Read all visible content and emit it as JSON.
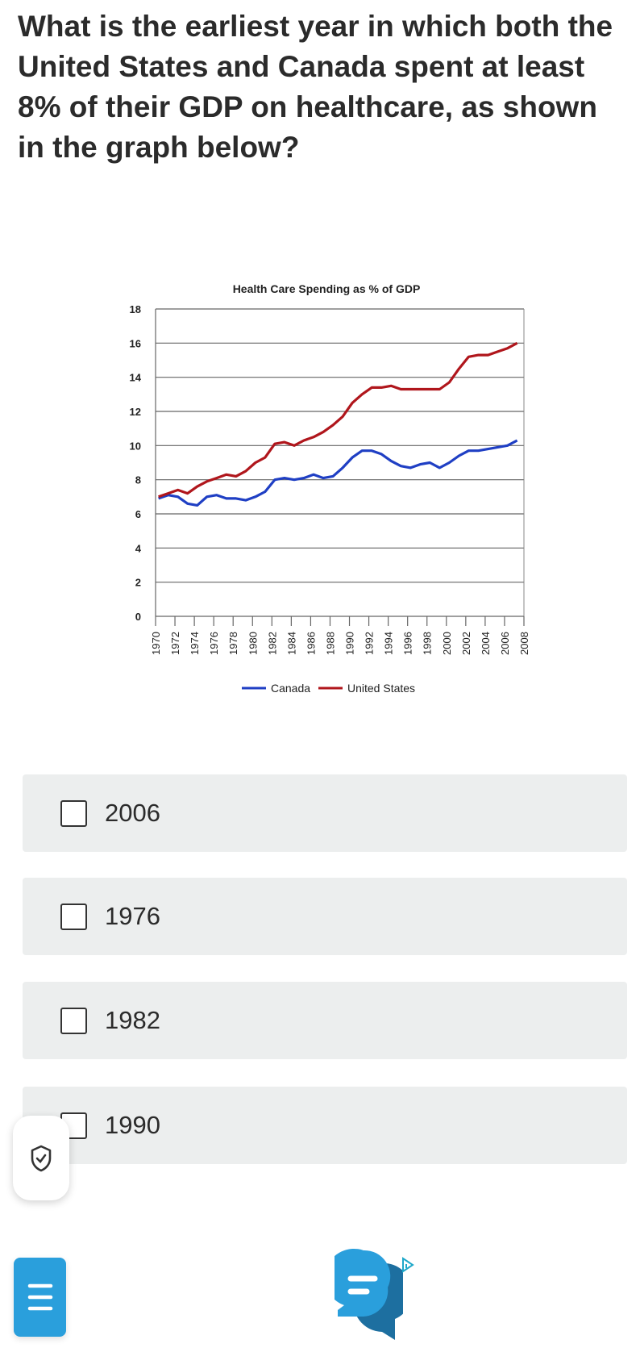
{
  "question": "What is the earliest year in which both the United States and Canada spent at least 8% of their GDP on healthcare, as shown in the graph below?",
  "options": [
    {
      "label": "2006"
    },
    {
      "label": "1976"
    },
    {
      "label": "1982"
    },
    {
      "label": "1990"
    }
  ],
  "icons": {
    "floating": "shield-check-icon",
    "menu": "menu-icon",
    "chat": "chat-bubbles-icon",
    "ad": "ad-choices-icon"
  },
  "colors": {
    "canada": "#1f3fc4",
    "us": "#b0161c",
    "option_bg": "#eceeee",
    "accent": "#2a9fdc"
  },
  "chart_data": {
    "type": "line",
    "title": "Health Care Spending as % of GDP",
    "xlabel": "",
    "ylabel": "",
    "ylim": [
      0,
      18
    ],
    "yticks": [
      "0",
      "2",
      "4",
      "6",
      "8",
      "10",
      "12",
      "14",
      "16",
      "18"
    ],
    "xlim": [
      1970,
      2008
    ],
    "xticks": [
      "1970",
      "1972",
      "1974",
      "1976",
      "1978",
      "1980",
      "1982",
      "1984",
      "1986",
      "1988",
      "1990",
      "1992",
      "1994",
      "1996",
      "1998",
      "2000",
      "2002",
      "2004",
      "2006",
      "2008"
    ],
    "grid": true,
    "legend": "bottom",
    "x": [
      1970,
      1971,
      1972,
      1973,
      1974,
      1975,
      1976,
      1977,
      1978,
      1979,
      1980,
      1981,
      1982,
      1983,
      1984,
      1985,
      1986,
      1987,
      1988,
      1989,
      1990,
      1991,
      1992,
      1993,
      1994,
      1995,
      1996,
      1997,
      1998,
      1999,
      2000,
      2001,
      2002,
      2003,
      2004,
      2005,
      2006,
      2007
    ],
    "series": [
      {
        "name": "Canada",
        "color": "#1f3fc4",
        "values": [
          6.9,
          7.1,
          7.0,
          6.6,
          6.5,
          7.0,
          7.1,
          6.9,
          6.9,
          6.8,
          7.0,
          7.3,
          8.0,
          8.1,
          8.0,
          8.1,
          8.3,
          8.1,
          8.2,
          8.7,
          9.3,
          9.7,
          9.7,
          9.5,
          9.1,
          8.8,
          8.7,
          8.9,
          9.0,
          8.7,
          9.0,
          9.4,
          9.7,
          9.7,
          9.8,
          9.9,
          10.0,
          10.3
        ]
      },
      {
        "name": "United States",
        "color": "#b0161c",
        "values": [
          7.0,
          7.2,
          7.4,
          7.2,
          7.6,
          7.9,
          8.1,
          8.3,
          8.2,
          8.5,
          9.0,
          9.3,
          10.1,
          10.2,
          10.0,
          10.3,
          10.5,
          10.8,
          11.2,
          11.7,
          12.5,
          13.0,
          13.4,
          13.4,
          13.5,
          13.3,
          13.3,
          13.3,
          13.3,
          13.3,
          13.7,
          14.5,
          15.2,
          15.3,
          15.3,
          15.5,
          15.7,
          16.0
        ]
      }
    ]
  }
}
